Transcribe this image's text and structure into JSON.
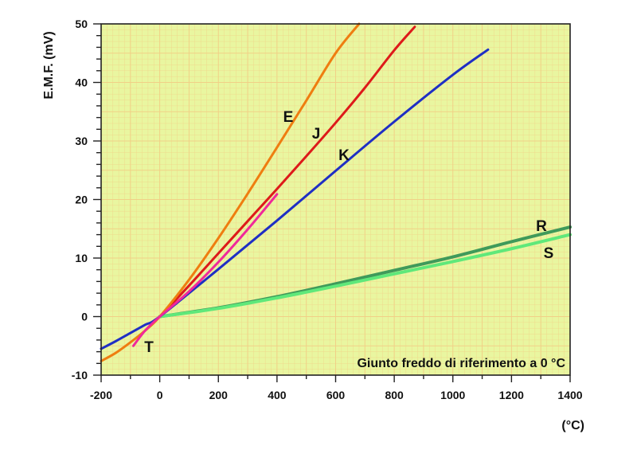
{
  "chart_data": {
    "type": "line",
    "ylabel": "E.M.F. (mV)",
    "xunit": "(°C)",
    "note": "Giunto freddo di riferimento a 0 °C",
    "xlim": [
      -200,
      1400
    ],
    "ylim": [
      -10,
      50
    ],
    "xticks": [
      -200,
      0,
      200,
      400,
      600,
      800,
      1000,
      1200,
      1400
    ],
    "yticks": [
      -10,
      0,
      10,
      20,
      30,
      40,
      50
    ],
    "xtick_labels": [
      "-200",
      "0",
      "200",
      "400",
      "600",
      "800",
      "1000",
      "1200",
      "1400"
    ],
    "ytick_labels": [
      "-10",
      "0",
      "10",
      "20",
      "30",
      "40",
      "50"
    ],
    "grid": true,
    "colors": {
      "plot_background": "#e9f6a0",
      "grid": "#f2cf86",
      "E": "#ef7d10",
      "J": "#dd1a1a",
      "K": "#1f2fc4",
      "T": "#f0289a",
      "R": "#3f9a5a",
      "S": "#5fe87a"
    },
    "series": [
      {
        "name": "E",
        "x": [
          -200,
          -150,
          -100,
          -50,
          0,
          100,
          200,
          300,
          400,
          500,
          600,
          680
        ],
        "y": [
          -7.6,
          -6.2,
          -4.4,
          -2.4,
          0,
          6.3,
          13.4,
          21.0,
          28.9,
          36.9,
          45.0,
          50.0
        ]
      },
      {
        "name": "J",
        "x": [
          -50,
          0,
          100,
          200,
          300,
          400,
          500,
          600,
          700,
          800,
          870
        ],
        "y": [
          -2.4,
          0,
          5.3,
          10.8,
          16.3,
          21.8,
          27.4,
          33.1,
          39.1,
          45.5,
          49.5
        ]
      },
      {
        "name": "K",
        "x": [
          -200,
          -150,
          -100,
          -50,
          0,
          200,
          400,
          600,
          800,
          1000,
          1120
        ],
        "y": [
          -5.5,
          -4.2,
          -2.8,
          -1.4,
          0,
          8.1,
          16.4,
          24.9,
          33.3,
          41.3,
          45.6
        ]
      },
      {
        "name": "T",
        "x": [
          -90,
          -50,
          0,
          100,
          200,
          300,
          400
        ],
        "y": [
          -5.0,
          -2.4,
          0,
          4.3,
          9.3,
          14.9,
          20.9
        ]
      },
      {
        "name": "R",
        "x": [
          0,
          200,
          400,
          600,
          800,
          1000,
          1200,
          1400
        ],
        "y": [
          0,
          1.5,
          3.4,
          5.6,
          7.9,
          10.2,
          12.8,
          15.3
        ]
      },
      {
        "name": "S",
        "x": [
          0,
          200,
          400,
          600,
          800,
          1000,
          1200,
          1400
        ],
        "y": [
          0,
          1.4,
          3.2,
          5.2,
          7.3,
          9.4,
          11.6,
          14.0
        ]
      }
    ]
  }
}
